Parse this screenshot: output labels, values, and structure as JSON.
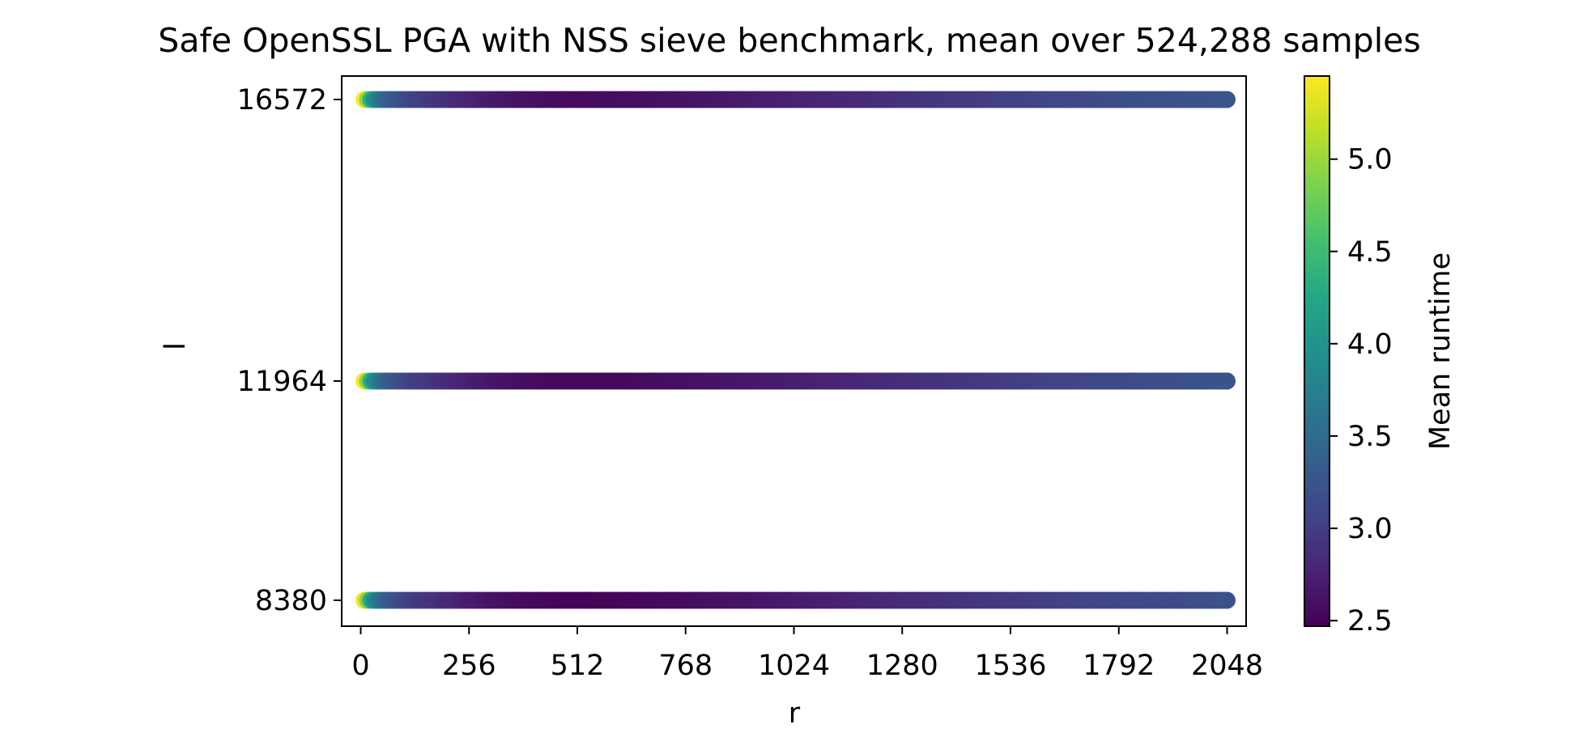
{
  "chart_data": {
    "type": "scatter",
    "title": "Safe OpenSSL PGA with NSS sieve benchmark, mean over 524,288 samples",
    "xlabel": "r",
    "ylabel": "l",
    "xlim": [
      -45,
      2093
    ],
    "x_ticks": [
      0,
      256,
      512,
      768,
      1024,
      1280,
      1536,
      1792,
      2048
    ],
    "x_tick_labels": [
      "0",
      "256",
      "512",
      "768",
      "1024",
      "1280",
      "1536",
      "1792",
      "2048"
    ],
    "y_categories": [
      "8380",
      "11964",
      "16572"
    ],
    "y_values": [
      8380,
      11964,
      16572
    ],
    "x_range": {
      "start": 8,
      "end": 2048,
      "step": 8
    },
    "runtime_profile": {
      "r": [
        8,
        16,
        24,
        32,
        48,
        64,
        96,
        128,
        192,
        256,
        320,
        384,
        448,
        512,
        640,
        768,
        1024,
        1280,
        1536,
        1792,
        2048
      ],
      "mean_runtime": [
        5.4,
        4.9,
        4.3,
        3.9,
        3.55,
        3.35,
        3.15,
        3.0,
        2.85,
        2.72,
        2.62,
        2.56,
        2.52,
        2.5,
        2.52,
        2.56,
        2.68,
        2.82,
        2.97,
        3.1,
        3.2
      ]
    },
    "series_offsets": [
      {
        "l": "8380",
        "offset": 0.0
      },
      {
        "l": "11964",
        "offset": 0.03
      },
      {
        "l": "16572",
        "offset": 0.06
      }
    ],
    "colorbar": {
      "label": "Mean runtime",
      "min": 2.47,
      "max": 5.45,
      "ticks": [
        2.5,
        3.0,
        3.5,
        4.0,
        4.5,
        5.0
      ],
      "tick_labels": [
        "2.5",
        "3.0",
        "3.5",
        "4.0",
        "4.5",
        "5.0"
      ],
      "colormap": "viridis"
    }
  }
}
